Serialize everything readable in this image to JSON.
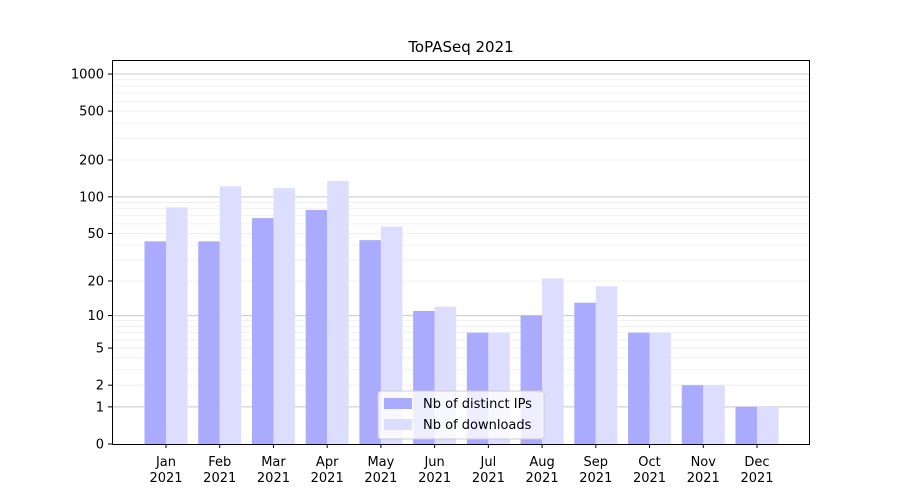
{
  "chart_data": {
    "type": "bar",
    "title": "ToPASeq 2021",
    "xlabel": "",
    "ylabel": "",
    "scale": "log(y+1)",
    "grid": true,
    "legend_position": "bottom-center",
    "categories": [
      {
        "month": "Jan",
        "year": "2021"
      },
      {
        "month": "Feb",
        "year": "2021"
      },
      {
        "month": "Mar",
        "year": "2021"
      },
      {
        "month": "Apr",
        "year": "2021"
      },
      {
        "month": "May",
        "year": "2021"
      },
      {
        "month": "Jun",
        "year": "2021"
      },
      {
        "month": "Jul",
        "year": "2021"
      },
      {
        "month": "Aug",
        "year": "2021"
      },
      {
        "month": "Sep",
        "year": "2021"
      },
      {
        "month": "Oct",
        "year": "2021"
      },
      {
        "month": "Nov",
        "year": "2021"
      },
      {
        "month": "Dec",
        "year": "2021"
      }
    ],
    "series": [
      {
        "name": "Nb of distinct IPs",
        "color": "#aaaaff",
        "values": [
          43,
          43,
          67,
          78,
          44,
          11,
          7,
          10,
          13,
          7,
          2,
          1
        ]
      },
      {
        "name": "Nb of downloads",
        "color": "#ddddff",
        "values": [
          82,
          122,
          118,
          135,
          57,
          12,
          7,
          21,
          18,
          7,
          2,
          1
        ]
      }
    ],
    "yticks": [
      0,
      1,
      2,
      5,
      10,
      20,
      50,
      100,
      200,
      500,
      1000
    ],
    "ylim": [
      0,
      1300
    ]
  }
}
